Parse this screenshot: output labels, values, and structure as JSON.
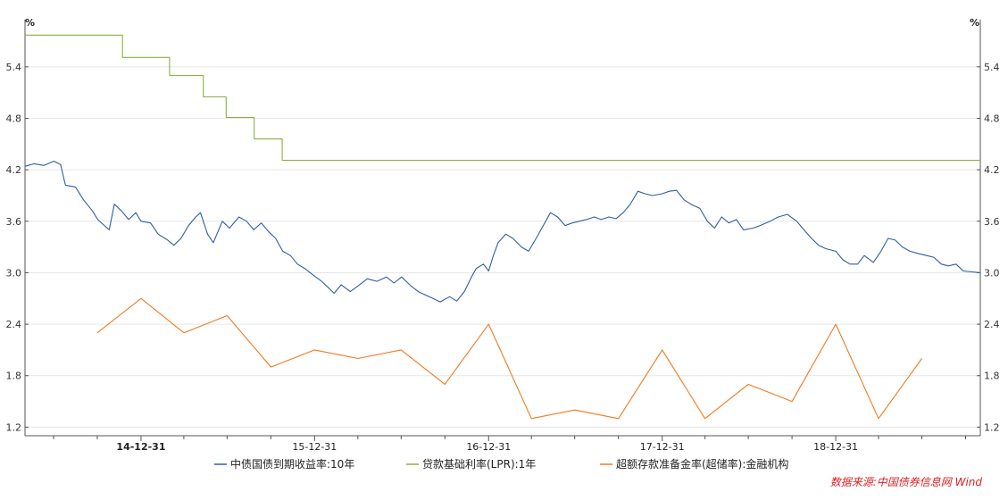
{
  "chart_data": {
    "type": "line",
    "unit_left": "%",
    "unit_right": "%",
    "y_ticks": [
      "5.4",
      "4.8",
      "4.2",
      "3.6",
      "3.0",
      "2.4",
      "1.8",
      "1.2"
    ],
    "ylim": [
      1.1,
      5.95
    ],
    "x_ticks": [
      "14-12-31",
      "15-12-31",
      "16-12-31",
      "17-12-31",
      "18-12-31"
    ],
    "xlim": [
      "2014-05-01",
      "2019-10-31"
    ],
    "grid": true,
    "legend_position": "bottom",
    "source": "数据来源:中国债券信息网 Wind",
    "series": [
      {
        "name": "中债国债到期收益率:10年",
        "color": "#2e5fa3",
        "points": [
          [
            "2014-05-01",
            4.24
          ],
          [
            "2014-05-20",
            4.27
          ],
          [
            "2014-06-10",
            4.25
          ],
          [
            "2014-07-01",
            4.3
          ],
          [
            "2014-07-15",
            4.26
          ],
          [
            "2014-07-25",
            4.02
          ],
          [
            "2014-08-15",
            4.0
          ],
          [
            "2014-09-01",
            3.85
          ],
          [
            "2014-09-20",
            3.72
          ],
          [
            "2014-10-01",
            3.62
          ],
          [
            "2014-10-15",
            3.55
          ],
          [
            "2014-10-25",
            3.5
          ],
          [
            "2014-11-05",
            3.8
          ],
          [
            "2014-11-20",
            3.72
          ],
          [
            "2014-12-05",
            3.62
          ],
          [
            "2014-12-20",
            3.7
          ],
          [
            "2014-12-31",
            3.6
          ],
          [
            "2015-01-20",
            3.58
          ],
          [
            "2015-02-05",
            3.45
          ],
          [
            "2015-02-25",
            3.38
          ],
          [
            "2015-03-10",
            3.32
          ],
          [
            "2015-03-25",
            3.4
          ],
          [
            "2015-04-10",
            3.55
          ],
          [
            "2015-04-25",
            3.65
          ],
          [
            "2015-05-05",
            3.7
          ],
          [
            "2015-05-20",
            3.45
          ],
          [
            "2015-06-01",
            3.35
          ],
          [
            "2015-06-20",
            3.6
          ],
          [
            "2015-07-05",
            3.52
          ],
          [
            "2015-07-25",
            3.65
          ],
          [
            "2015-08-10",
            3.6
          ],
          [
            "2015-08-25",
            3.5
          ],
          [
            "2015-09-10",
            3.58
          ],
          [
            "2015-09-25",
            3.48
          ],
          [
            "2015-10-10",
            3.4
          ],
          [
            "2015-10-25",
            3.25
          ],
          [
            "2015-11-10",
            3.2
          ],
          [
            "2015-11-25",
            3.1
          ],
          [
            "2015-12-10",
            3.05
          ],
          [
            "2015-12-31",
            2.96
          ],
          [
            "2016-01-15",
            2.9
          ],
          [
            "2016-01-30",
            2.82
          ],
          [
            "2016-02-10",
            2.76
          ],
          [
            "2016-02-25",
            2.86
          ],
          [
            "2016-03-15",
            2.78
          ],
          [
            "2016-04-01",
            2.85
          ],
          [
            "2016-04-20",
            2.93
          ],
          [
            "2016-05-10",
            2.9
          ],
          [
            "2016-05-30",
            2.95
          ],
          [
            "2016-06-15",
            2.88
          ],
          [
            "2016-07-01",
            2.95
          ],
          [
            "2016-07-20",
            2.85
          ],
          [
            "2016-08-05",
            2.78
          ],
          [
            "2016-08-20",
            2.74
          ],
          [
            "2016-09-05",
            2.7
          ],
          [
            "2016-09-20",
            2.66
          ],
          [
            "2016-10-10",
            2.72
          ],
          [
            "2016-10-25",
            2.67
          ],
          [
            "2016-11-10",
            2.78
          ],
          [
            "2016-11-25",
            2.95
          ],
          [
            "2016-12-05",
            3.05
          ],
          [
            "2016-12-20",
            3.1
          ],
          [
            "2016-12-31",
            3.02
          ],
          [
            "2017-01-10",
            3.2
          ],
          [
            "2017-01-20",
            3.35
          ],
          [
            "2017-02-05",
            3.45
          ],
          [
            "2017-02-20",
            3.4
          ],
          [
            "2017-03-10",
            3.3
          ],
          [
            "2017-03-25",
            3.25
          ],
          [
            "2017-04-10",
            3.4
          ],
          [
            "2017-04-25",
            3.55
          ],
          [
            "2017-05-10",
            3.7
          ],
          [
            "2017-05-25",
            3.65
          ],
          [
            "2017-06-10",
            3.55
          ],
          [
            "2017-06-25",
            3.58
          ],
          [
            "2017-07-10",
            3.6
          ],
          [
            "2017-07-25",
            3.62
          ],
          [
            "2017-08-10",
            3.65
          ],
          [
            "2017-08-25",
            3.62
          ],
          [
            "2017-09-10",
            3.65
          ],
          [
            "2017-09-25",
            3.63
          ],
          [
            "2017-10-10",
            3.7
          ],
          [
            "2017-10-25",
            3.8
          ],
          [
            "2017-11-10",
            3.95
          ],
          [
            "2017-11-25",
            3.92
          ],
          [
            "2017-12-10",
            3.9
          ],
          [
            "2017-12-31",
            3.92
          ],
          [
            "2018-01-15",
            3.95
          ],
          [
            "2018-01-30",
            3.96
          ],
          [
            "2018-02-15",
            3.85
          ],
          [
            "2018-03-01",
            3.8
          ],
          [
            "2018-03-20",
            3.75
          ],
          [
            "2018-04-05",
            3.6
          ],
          [
            "2018-04-20",
            3.52
          ],
          [
            "2018-05-05",
            3.65
          ],
          [
            "2018-05-20",
            3.58
          ],
          [
            "2018-06-05",
            3.62
          ],
          [
            "2018-06-20",
            3.5
          ],
          [
            "2018-07-10",
            3.52
          ],
          [
            "2018-07-25",
            3.55
          ],
          [
            "2018-08-15",
            3.6
          ],
          [
            "2018-09-01",
            3.65
          ],
          [
            "2018-09-20",
            3.68
          ],
          [
            "2018-10-10",
            3.6
          ],
          [
            "2018-10-25",
            3.5
          ],
          [
            "2018-11-10",
            3.4
          ],
          [
            "2018-11-25",
            3.32
          ],
          [
            "2018-12-10",
            3.28
          ],
          [
            "2018-12-31",
            3.25
          ],
          [
            "2019-01-15",
            3.15
          ],
          [
            "2019-01-30",
            3.1
          ],
          [
            "2019-02-15",
            3.1
          ],
          [
            "2019-03-01",
            3.2
          ],
          [
            "2019-03-20",
            3.12
          ],
          [
            "2019-04-05",
            3.25
          ],
          [
            "2019-04-20",
            3.4
          ],
          [
            "2019-05-05",
            3.38
          ],
          [
            "2019-05-20",
            3.3
          ],
          [
            "2019-06-05",
            3.25
          ],
          [
            "2019-06-25",
            3.22
          ],
          [
            "2019-07-10",
            3.2
          ],
          [
            "2019-07-25",
            3.18
          ],
          [
            "2019-08-10",
            3.1
          ],
          [
            "2019-08-25",
            3.08
          ],
          [
            "2019-09-10",
            3.1
          ],
          [
            "2019-09-25",
            3.02
          ],
          [
            "2019-10-31",
            3.0
          ]
        ]
      },
      {
        "name": "贷款基础利率(LPR):1年",
        "color": "#8ab040",
        "step": true,
        "points": [
          [
            "2014-05-01",
            5.77
          ],
          [
            "2014-11-22",
            5.51
          ],
          [
            "2015-03-01",
            5.3
          ],
          [
            "2015-05-11",
            5.05
          ],
          [
            "2015-06-28",
            4.81
          ],
          [
            "2015-08-26",
            4.56
          ],
          [
            "2015-10-24",
            4.31
          ],
          [
            "2019-10-31",
            4.31
          ]
        ]
      },
      {
        "name": "超额存款准备金率(超储率):金融机构",
        "color": "#f07a20",
        "points": [
          [
            "2014-09-30",
            2.3
          ],
          [
            "2014-12-31",
            2.7
          ],
          [
            "2015-03-31",
            2.3
          ],
          [
            "2015-06-30",
            2.5
          ],
          [
            "2015-09-30",
            1.9
          ],
          [
            "2015-12-31",
            2.1
          ],
          [
            "2016-03-31",
            2.0
          ],
          [
            "2016-06-30",
            2.1
          ],
          [
            "2016-09-30",
            1.7
          ],
          [
            "2016-12-31",
            2.4
          ],
          [
            "2017-03-31",
            1.3
          ],
          [
            "2017-06-30",
            1.4
          ],
          [
            "2017-09-30",
            1.3
          ],
          [
            "2017-12-31",
            2.1
          ],
          [
            "2018-03-31",
            1.3
          ],
          [
            "2018-06-30",
            1.7
          ],
          [
            "2018-09-30",
            1.5
          ],
          [
            "2018-12-31",
            2.4
          ],
          [
            "2019-03-31",
            1.3
          ],
          [
            "2019-06-30",
            2.0
          ]
        ]
      }
    ]
  }
}
